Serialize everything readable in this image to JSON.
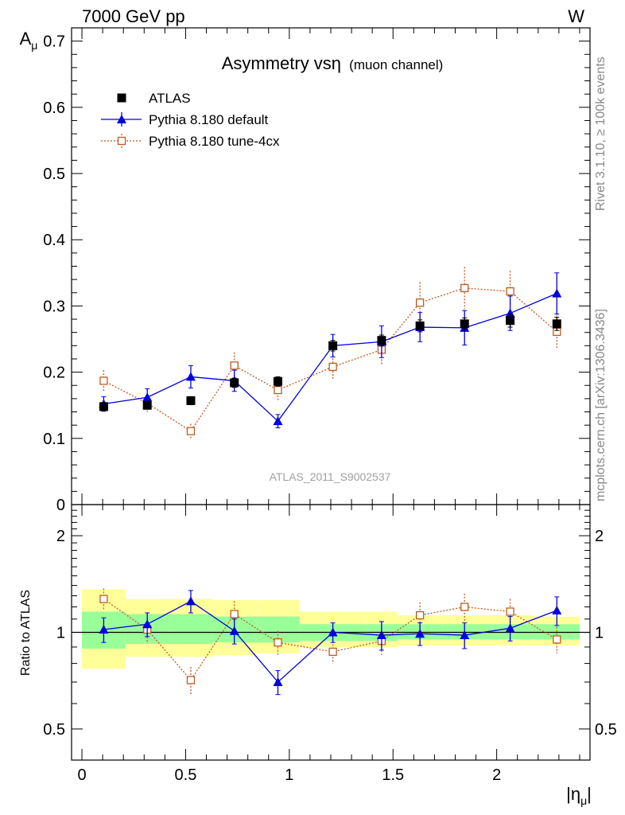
{
  "header": {
    "left": "7000 GeV pp",
    "right": "W"
  },
  "side_labels": {
    "rivet": "Rivet 3.1.10, ≥ 100k events",
    "mcplots": "mcplots.cern.ch [arXiv:1306.3436]"
  },
  "plot_title": {
    "main": "Asymmetry vsη",
    "sub": "(muon channel)"
  },
  "watermark": "ATLAS_2011_S9002537",
  "colors": {
    "data": "#000000",
    "default": "#0000dd",
    "tune4cx": "#c05a1e",
    "band_inner": "#99ff99",
    "band_outer": "#ffff99"
  },
  "chart_data": [
    {
      "type": "scatter",
      "panel": "main",
      "ylabel": "A_μ",
      "ylim": [
        0,
        0.72
      ],
      "yticks": [
        0,
        0.1,
        0.2,
        0.3,
        0.4,
        0.5,
        0.6,
        0.7
      ],
      "ytick_labels": [
        "0",
        "0.1",
        "0.2",
        "0.3",
        "0.4",
        "0.5",
        "0.6",
        "0.7"
      ],
      "xlim": [
        -0.05,
        2.45
      ],
      "bin_edges": [
        0,
        0.21,
        0.42,
        0.63,
        0.84,
        1.05,
        1.37,
        1.52,
        1.74,
        1.95,
        2.18,
        2.4
      ],
      "x": [
        0.105,
        0.315,
        0.525,
        0.735,
        0.945,
        1.21,
        1.445,
        1.63,
        1.845,
        2.065,
        2.29
      ],
      "legend_position": "top-left",
      "series": [
        {
          "name": "ATLAS",
          "marker": "square-filled",
          "values": [
            0.148,
            0.15,
            0.157,
            0.184,
            0.186,
            0.24,
            0.248,
            0.27,
            0.273,
            0.278,
            0.273
          ],
          "errors": [
            0.006,
            0.006,
            0.006,
            0.007,
            0.007,
            0.008,
            0.008,
            0.009,
            0.009,
            0.01,
            0.01
          ]
        },
        {
          "name": "Pythia 8.180 default",
          "marker": "triangle-filled",
          "line": "solid",
          "values": [
            0.152,
            0.162,
            0.193,
            0.187,
            0.126,
            0.24,
            0.246,
            0.268,
            0.267,
            0.289,
            0.319
          ],
          "errors": [
            0.011,
            0.013,
            0.017,
            0.016,
            0.01,
            0.017,
            0.024,
            0.022,
            0.026,
            0.026,
            0.031
          ]
        },
        {
          "name": "Pythia 8.180 tune-4cx",
          "marker": "square-open",
          "line": "dotted",
          "values": [
            0.187,
            0.153,
            0.111,
            0.21,
            0.173,
            0.208,
            0.234,
            0.305,
            0.327,
            0.322,
            0.261
          ],
          "errors": [
            0.016,
            0.013,
            0.011,
            0.02,
            0.016,
            0.018,
            0.024,
            0.031,
            0.032,
            0.031,
            0.026
          ]
        }
      ]
    },
    {
      "type": "scatter",
      "panel": "ratio",
      "ylabel": "Ratio to ATLAS",
      "xlabel": "|η_μ|",
      "log_y": true,
      "ylim": [
        0.4,
        2.5
      ],
      "yticks": [
        0.5,
        1,
        2
      ],
      "ytick_labels": [
        "0.5",
        "1",
        "2"
      ],
      "xticks": [
        0,
        0.5,
        1,
        1.5,
        2
      ],
      "xtick_labels": [
        "0",
        "0.5",
        "1",
        "1.5",
        "2"
      ],
      "xlim": [
        -0.05,
        2.45
      ],
      "bin_edges": [
        0,
        0.21,
        0.42,
        0.63,
        0.84,
        1.05,
        1.37,
        1.52,
        1.74,
        1.95,
        2.18,
        2.4
      ],
      "x": [
        0.105,
        0.315,
        0.525,
        0.735,
        0.945,
        1.21,
        1.445,
        1.63,
        1.845,
        2.065,
        2.29
      ],
      "band_inner": [
        [
          0.89,
          1.16
        ],
        [
          0.92,
          1.14
        ],
        [
          0.92,
          1.14
        ],
        [
          0.93,
          1.12
        ],
        [
          0.93,
          1.12
        ],
        [
          0.94,
          1.06
        ],
        [
          0.94,
          1.06
        ],
        [
          0.95,
          1.06
        ],
        [
          0.95,
          1.06
        ],
        [
          0.95,
          1.06
        ],
        [
          0.95,
          1.06
        ]
      ],
      "band_outer": [
        [
          0.77,
          1.36
        ],
        [
          0.84,
          1.27
        ],
        [
          0.84,
          1.27
        ],
        [
          0.85,
          1.26
        ],
        [
          0.86,
          1.26
        ],
        [
          0.9,
          1.16
        ],
        [
          0.9,
          1.16
        ],
        [
          0.91,
          1.13
        ],
        [
          0.91,
          1.13
        ],
        [
          0.91,
          1.13
        ],
        [
          0.91,
          1.12
        ]
      ],
      "series": [
        {
          "name": "Pythia 8.180 default",
          "marker": "triangle-filled",
          "line": "solid",
          "values": [
            1.02,
            1.06,
            1.25,
            1.01,
            0.7,
            1.0,
            0.98,
            0.99,
            0.98,
            1.03,
            1.17
          ],
          "errors": [
            0.09,
            0.09,
            0.1,
            0.09,
            0.06,
            0.07,
            0.1,
            0.08,
            0.09,
            0.09,
            0.12
          ]
        },
        {
          "name": "Pythia 8.180 tune-4cx",
          "marker": "square-open",
          "line": "dotted",
          "values": [
            1.27,
            1.02,
            0.71,
            1.14,
            0.93,
            0.87,
            0.94,
            1.13,
            1.2,
            1.16,
            0.95
          ],
          "errors": [
            0.1,
            0.09,
            0.07,
            0.11,
            0.08,
            0.07,
            0.09,
            0.11,
            0.12,
            0.11,
            0.09
          ]
        }
      ]
    }
  ]
}
